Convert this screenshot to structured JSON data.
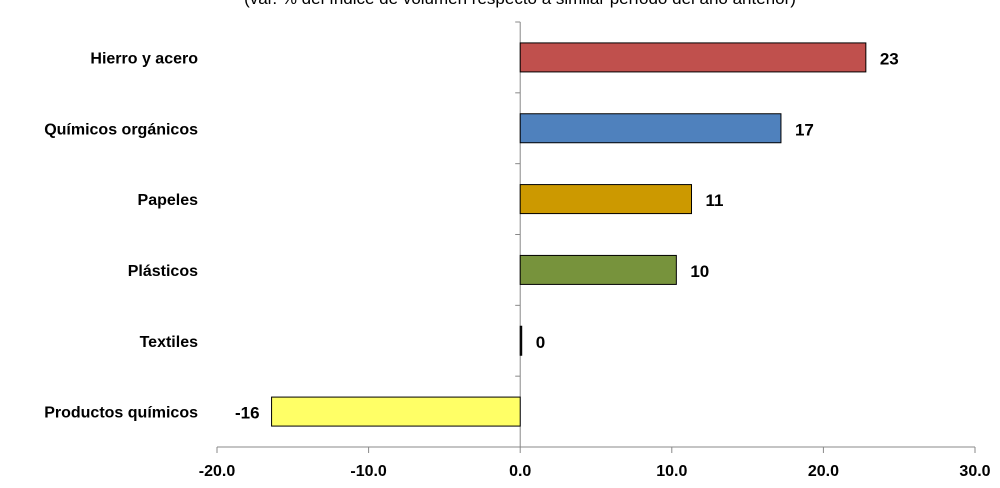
{
  "chart_data": {
    "type": "bar",
    "orientation": "horizontal",
    "subtitle": "(var. % del índice de volumen respecto a similar período del año anterior)",
    "categories": [
      "Hierro y acero",
      "Químicos orgánicos",
      "Papeles",
      "Plásticos",
      "Textiles",
      "Productos químicos"
    ],
    "values": [
      22.8,
      17.2,
      11.3,
      10.3,
      0.1,
      -16.4
    ],
    "data_labels": [
      "23",
      "17",
      "11",
      "10",
      "0",
      "-16"
    ],
    "colors": [
      "#c0504d",
      "#4f81bd",
      "#cc9900",
      "#77933c",
      "#1f1f1f",
      "#ffff66"
    ],
    "xlim": [
      -20,
      30
    ],
    "x_ticks": [
      "-20.0",
      "-10.0",
      "0.0",
      "10.0",
      "20.0",
      "30.0"
    ],
    "x_tick_values": [
      -20,
      -10,
      0,
      10,
      20,
      30
    ],
    "grid": false,
    "legend": "none"
  }
}
